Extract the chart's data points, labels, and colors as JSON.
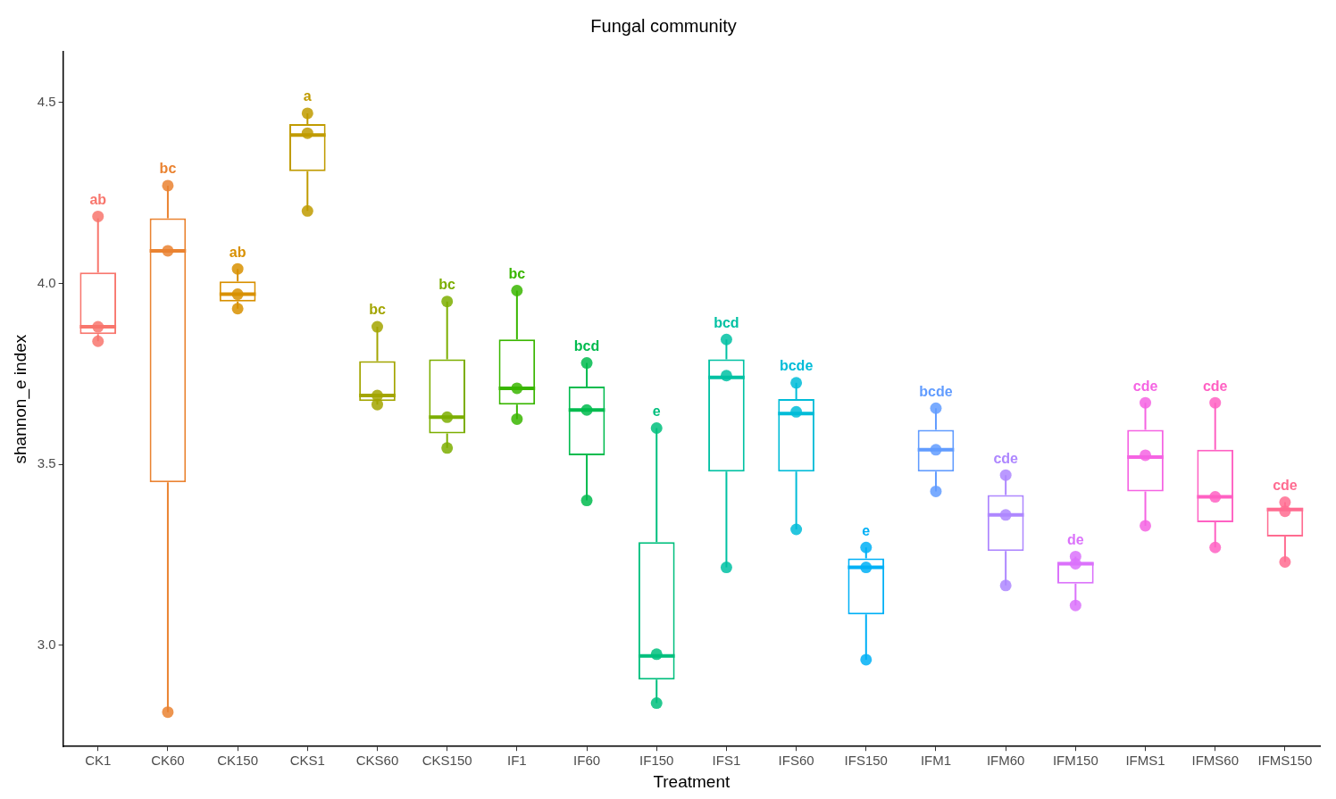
{
  "chart_data": {
    "type": "box",
    "title": "Fungal community",
    "xlabel": "Treatment",
    "ylabel": "shannon_e index",
    "categories": [
      "CK1",
      "CK60",
      "CK150",
      "CKS1",
      "CKS60",
      "CKS150",
      "IF1",
      "IF60",
      "IF150",
      "IFS1",
      "IFS60",
      "IFS150",
      "IFM1",
      "IFM60",
      "IFM150",
      "IFMS1",
      "IFMS60",
      "IFMS150"
    ],
    "colors": [
      "#f8766d",
      "#ea8331",
      "#d89000",
      "#c09b00",
      "#a3a500",
      "#7cae00",
      "#39b600",
      "#00bb4e",
      "#00bf7d",
      "#00c1a3",
      "#00bcd8",
      "#00b0f6",
      "#619cff",
      "#ae87ff",
      "#db72fb",
      "#f564e3",
      "#ff61c3",
      "#ff6c91"
    ],
    "boxes": [
      {
        "low": 3.84,
        "q1": 3.86,
        "median": 3.88,
        "q3": 4.03,
        "high": 4.18
      },
      {
        "low": 2.815,
        "q1": 3.45,
        "median": 4.09,
        "q3": 4.18,
        "high": 4.27
      },
      {
        "low": 3.93,
        "q1": 3.95,
        "median": 3.97,
        "q3": 4.005,
        "high": 4.04
      },
      {
        "low": 4.2,
        "q1": 4.31,
        "median": 4.41,
        "q3": 4.44,
        "high": 4.47
      },
      {
        "low": 3.665,
        "q1": 3.675,
        "median": 3.69,
        "q3": 3.785,
        "high": 3.88
      },
      {
        "low": 3.545,
        "q1": 3.585,
        "median": 3.63,
        "q3": 3.79,
        "high": 3.95
      },
      {
        "low": 3.625,
        "q1": 3.665,
        "median": 3.71,
        "q3": 3.845,
        "high": 3.98
      },
      {
        "low": 3.4,
        "q1": 3.525,
        "median": 3.65,
        "q3": 3.715,
        "high": 3.78
      },
      {
        "low": 2.84,
        "q1": 2.905,
        "median": 2.97,
        "q3": 3.285,
        "high": 3.6
      },
      {
        "low": 3.215,
        "q1": 3.48,
        "median": 3.74,
        "q3": 3.79,
        "high": 3.845
      },
      {
        "low": 3.32,
        "q1": 3.48,
        "median": 3.64,
        "q3": 3.68,
        "high": 3.725
      },
      {
        "low": 2.96,
        "q1": 3.085,
        "median": 3.215,
        "q3": 3.24,
        "high": 3.27
      },
      {
        "low": 3.425,
        "q1": 3.48,
        "median": 3.54,
        "q3": 3.595,
        "high": 3.655
      },
      {
        "low": 3.165,
        "q1": 3.26,
        "median": 3.36,
        "q3": 3.415,
        "high": 3.47
      },
      {
        "low": 3.11,
        "q1": 3.17,
        "median": 3.225,
        "q3": 3.23,
        "high": 3.245
      },
      {
        "low": 3.33,
        "q1": 3.425,
        "median": 3.52,
        "q3": 3.595,
        "high": 3.67
      },
      {
        "low": 3.27,
        "q1": 3.34,
        "median": 3.41,
        "q3": 3.54,
        "high": 3.67
      },
      {
        "low": 3.23,
        "q1": 3.3,
        "median": 3.375,
        "q3": 3.38,
        "high": 3.395
      }
    ],
    "series": [
      {
        "type": "scatter",
        "x": [
          "CK1",
          "CK1",
          "CK1",
          "CK60",
          "CK60",
          "CK60",
          "CK150",
          "CK150",
          "CK150",
          "CKS1",
          "CKS1",
          "CKS1",
          "CKS60",
          "CKS60",
          "CKS60",
          "CKS150",
          "CKS150",
          "CKS150",
          "IF1",
          "IF1",
          "IF1",
          "IF60",
          "IF60",
          "IF60",
          "IF150",
          "IF150",
          "IF150",
          "IFS1",
          "IFS1",
          "IFS1",
          "IFS60",
          "IFS60",
          "IFS60",
          "IFS150",
          "IFS150",
          "IFS150",
          "IFM1",
          "IFM1",
          "IFM1",
          "IFM60",
          "IFM60",
          "IFM60",
          "IFM150",
          "IFM150",
          "IFM150",
          "IFMS1",
          "IFMS1",
          "IFMS1",
          "IFMS60",
          "IFMS60",
          "IFMS60",
          "IFMS150",
          "IFMS150",
          "IFMS150"
        ],
        "values": [
          4.185,
          3.88,
          3.84,
          4.27,
          4.09,
          2.815,
          4.04,
          3.97,
          3.93,
          4.47,
          4.415,
          4.2,
          3.88,
          3.69,
          3.665,
          3.95,
          3.63,
          3.545,
          3.98,
          3.71,
          3.625,
          3.78,
          3.65,
          3.4,
          3.6,
          2.975,
          2.84,
          3.845,
          3.745,
          3.215,
          3.725,
          3.645,
          3.32,
          3.27,
          3.215,
          2.96,
          3.655,
          3.54,
          3.425,
          3.47,
          3.36,
          3.165,
          3.245,
          3.225,
          3.11,
          3.67,
          3.525,
          3.33,
          3.67,
          3.41,
          3.27,
          3.395,
          3.37,
          3.23
        ],
        "colors": [
          "#f8766d",
          "#f8766d",
          "#f8766d",
          "#ea8331",
          "#ea8331",
          "#ea8331",
          "#d89000",
          "#d89000",
          "#d89000",
          "#c09b00",
          "#c09b00",
          "#c09b00",
          "#a3a500",
          "#a3a500",
          "#a3a500",
          "#7cae00",
          "#7cae00",
          "#7cae00",
          "#39b600",
          "#39b600",
          "#39b600",
          "#00bb4e",
          "#00bb4e",
          "#00bb4e",
          "#00bf7d",
          "#00bf7d",
          "#00bf7d",
          "#00c1a3",
          "#00c1a3",
          "#00c1a3",
          "#00bcd8",
          "#00bcd8",
          "#00bcd8",
          "#00b0f6",
          "#00b0f6",
          "#00b0f6",
          "#619cff",
          "#619cff",
          "#619cff",
          "#ae87ff",
          "#ae87ff",
          "#ae87ff",
          "#db72fb",
          "#db72fb",
          "#db72fb",
          "#f564e3",
          "#f564e3",
          "#f564e3",
          "#ff61c3",
          "#ff61c3",
          "#ff61c3",
          "#ff6c91",
          "#ff6c91",
          "#ff6c91"
        ]
      }
    ],
    "annotations": [
      "ab",
      "bc",
      "ab",
      "a",
      "bc",
      "bc",
      "bc",
      "bcd",
      "e",
      "bcd",
      "bcde",
      "e",
      "bcde",
      "cde",
      "de",
      "cde",
      "cde",
      "cde"
    ],
    "ylim": [
      2.72,
      4.64
    ],
    "yticks": [
      {
        "value": 3,
        "label": "3.0"
      },
      {
        "value": 3.5,
        "label": "3.5"
      },
      {
        "value": 4,
        "label": "4.0"
      },
      {
        "value": 4.5,
        "label": "4.5"
      }
    ],
    "grid": false,
    "legend": false
  }
}
